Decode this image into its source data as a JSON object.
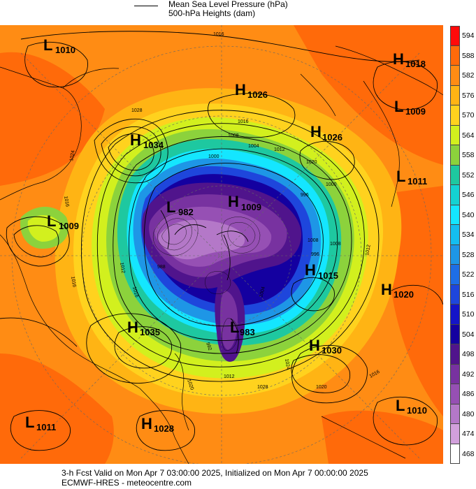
{
  "legend": {
    "line_label_1": "Mean Sea Level Pressure (hPa)",
    "line_label_2": "500-hPa Heights (dam)"
  },
  "colorbar": {
    "levels": [
      "594",
      "588",
      "582",
      "576",
      "570",
      "564",
      "558",
      "552",
      "546",
      "540",
      "534",
      "528",
      "522",
      "516",
      "510",
      "504",
      "498",
      "492",
      "486",
      "480",
      "474",
      "468"
    ],
    "colors": [
      "#ff0a0a",
      "#ff6a0a",
      "#ff8c14",
      "#ffb414",
      "#ffd21e",
      "#d2f01e",
      "#8cd23c",
      "#1ec8a0",
      "#14d2d2",
      "#14e6ff",
      "#14bef0",
      "#1e96e6",
      "#1e6ee6",
      "#1e46dc",
      "#1414c8",
      "#1400a0",
      "#50148c",
      "#7832a0",
      "#9650b4",
      "#b478c8",
      "#d2a0dc",
      "#ffffff"
    ]
  },
  "centers": [
    {
      "type": "L",
      "value": "1010"
    },
    {
      "type": "H",
      "value": "1018"
    },
    {
      "type": "H",
      "value": "1026"
    },
    {
      "type": "L",
      "value": "1009"
    },
    {
      "type": "H",
      "value": "1034"
    },
    {
      "type": "H",
      "value": "1026"
    },
    {
      "type": "L",
      "value": "1011"
    },
    {
      "type": "L",
      "value": "1009"
    },
    {
      "type": "L",
      "value": "982"
    },
    {
      "type": "H",
      "value": "1009"
    },
    {
      "type": "H",
      "value": "1015"
    },
    {
      "type": "H",
      "value": "1020"
    },
    {
      "type": "H",
      "value": "1035"
    },
    {
      "type": "L",
      "value": "983"
    },
    {
      "type": "H",
      "value": "1030"
    },
    {
      "type": "L",
      "value": "1010"
    },
    {
      "type": "L",
      "value": "1011"
    },
    {
      "type": "H",
      "value": "1028"
    }
  ],
  "contour_labels": [
    "1016",
    "1028",
    "1024",
    "1016",
    "1016",
    "1008",
    "1004",
    "1012",
    "1020",
    "1000",
    "996",
    "1008",
    "1012",
    "1016",
    "1020",
    "1024",
    "1028",
    "1020",
    "1016",
    "1012",
    "1004",
    "1000",
    "1008",
    "1012",
    "1016",
    "996",
    "988",
    "992"
  ],
  "footer": {
    "line1": "3-h Fcst Valid on Mon Apr  7 03:00:00 2025, Initialized on Mon Apr  7 00:00:00 2025",
    "line2": "ECMWF-HRES  - meteocentre.com"
  }
}
